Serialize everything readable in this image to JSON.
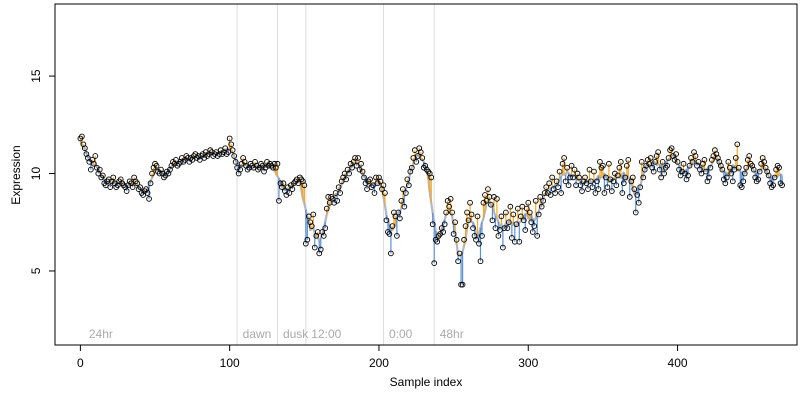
{
  "chart_data": {
    "type": "scatter",
    "xlabel": "Sample index",
    "ylabel": "Expression",
    "xlim": [
      -17,
      480
    ],
    "ylim": [
      1.2,
      18.7
    ],
    "xticks": [
      0,
      100,
      200,
      300,
      400
    ],
    "yticks": [
      5,
      10,
      15
    ],
    "grid": false,
    "legend": "none",
    "colors": {
      "above_fit": "#f5a623",
      "below_fit": "#5b8fd6",
      "fit_line": "#b0b8c4",
      "vlines": "#dddddd"
    },
    "annotations": [
      {
        "x": 3,
        "label": "24hr"
      },
      {
        "x": 106,
        "label": "dawn"
      },
      {
        "x": 133,
        "label": "dusk"
      },
      {
        "x": 152,
        "label": "12:00"
      },
      {
        "x": 204,
        "label": "0:00"
      },
      {
        "x": 238,
        "label": "48hr"
      }
    ],
    "vlines": [
      105,
      132,
      151,
      203,
      237
    ],
    "points_y": [
      11.8,
      11.9,
      11.5,
      11.3,
      11.0,
      10.8,
      10.6,
      10.2,
      10.7,
      10.5,
      10.9,
      10.3,
      10.0,
      10.2,
      9.8,
      9.9,
      9.5,
      9.4,
      9.6,
      9.7,
      9.3,
      9.6,
      9.8,
      9.5,
      9.3,
      9.4,
      9.6,
      9.7,
      9.5,
      9.4,
      9.3,
      9.1,
      9.4,
      9.6,
      9.5,
      9.3,
      9.8,
      9.6,
      9.5,
      9.2,
      9.3,
      9.0,
      8.9,
      9.1,
      9.2,
      9.0,
      8.7,
      9.5,
      10.0,
      10.3,
      10.5,
      10.4,
      10.1,
      10.0,
      10.2,
      10.0,
      9.8,
      9.9,
      10.1,
      10.0,
      10.2,
      10.4,
      10.6,
      10.5,
      10.7,
      10.4,
      10.5,
      10.6,
      10.8,
      10.6,
      10.7,
      10.9,
      10.8,
      10.6,
      10.8,
      10.7,
      10.9,
      11.0,
      10.8,
      10.9,
      10.7,
      10.9,
      11.0,
      10.8,
      11.1,
      10.9,
      11.0,
      11.2,
      11.1,
      10.9,
      11.0,
      11.1,
      10.9,
      11.0,
      11.2,
      11.0,
      11.1,
      11.3,
      11.0,
      11.1,
      11.8,
      11.5,
      11.2,
      10.9,
      10.6,
      10.3,
      10.0,
      10.2,
      10.5,
      10.8,
      10.6,
      10.4,
      10.2,
      10.3,
      10.5,
      10.4,
      10.3,
      10.6,
      10.4,
      10.2,
      10.3,
      10.5,
      10.4,
      10.1,
      10.3,
      10.6,
      10.4,
      10.5,
      10.4,
      10.3,
      10.5,
      10.3,
      10.5,
      8.6,
      9.5,
      9.3,
      9.5,
      9.1,
      8.9,
      9.3,
      9.0,
      9.4,
      9.2,
      9.5,
      9.6,
      9.7,
      9.5,
      9.8,
      9.7,
      9.6,
      9.4,
      6.4,
      6.6,
      7.8,
      7.5,
      7.3,
      7.9,
      6.2,
      6.8,
      7.0,
      5.9,
      6.1,
      7.0,
      6.8,
      7.2,
      8.2,
      8.8,
      8.5,
      8.8,
      8.7,
      8.5,
      9.0,
      8.6,
      9.3,
      9.0,
      9.6,
      9.8,
      10.0,
      9.7,
      10.2,
      10.0,
      10.5,
      10.3,
      10.6,
      10.8,
      10.4,
      10.8,
      10.2,
      10.5,
      10.1,
      9.8,
      9.5,
      9.2,
      9.6,
      9.7,
      9.3,
      9.4,
      9.0,
      9.8,
      9.5,
      9.8,
      9.6,
      9.2,
      9.4,
      9.0,
      7.6,
      7.0,
      6.9,
      5.9,
      7.3,
      8.0,
      7.8,
      6.8,
      8.0,
      7.7,
      8.6,
      9.2,
      8.3,
      9.0,
      9.7,
      9.4,
      10.1,
      10.3,
      10.8,
      11.2,
      10.6,
      10.9,
      11.3,
      11.1,
      10.8,
      10.3,
      10.4,
      10.2,
      10.1,
      10.0,
      9.8,
      7.4,
      5.4,
      6.6,
      6.5,
      6.8,
      6.9,
      7.2,
      7.0,
      7.4,
      8.0,
      8.6,
      8.3,
      8.7,
      8.0,
      6.9,
      7.5,
      6.6,
      5.5,
      5.9,
      4.3,
      4.3,
      6.6,
      7.3,
      8.0,
      7.6,
      8.5,
      7.9,
      7.2,
      6.8,
      6.6,
      7.8,
      6.4,
      5.5,
      6.8,
      8.5,
      8.9,
      8.6,
      9.2,
      8.8,
      8.4,
      7.6,
      8.8,
      7.2,
      8.7,
      6.8,
      7.1,
      7.8,
      6.2,
      7.2,
      8.0,
      7.2,
      7.5,
      8.3,
      6.7,
      7.9,
      6.5,
      7.4,
      8.2,
      6.5,
      7.8,
      8.3,
      7.6,
      7.1,
      8.2,
      8.5,
      8.0,
      7.5,
      7.0,
      7.3,
      8.6,
      6.8,
      7.9,
      8.8,
      8.3,
      8.6,
      9.0,
      9.3,
      9.0,
      9.5,
      8.9,
      9.8,
      9.2,
      9.0,
      9.6,
      9.3,
      10.1,
      9.0,
      10.5,
      10.8,
      9.6,
      10.3,
      9.4,
      9.8,
      10.4,
      9.8,
      10.2,
      9.4,
      10.0,
      9.8,
      9.4,
      9.1,
      9.6,
      9.8,
      9.5,
      9.2,
      10.2,
      9.6,
      9.3,
      10.1,
      9.0,
      9.6,
      9.2,
      10.6,
      10.3,
      10.4,
      9.0,
      9.8,
      9.3,
      10.5,
      9.7,
      9.1,
      9.6,
      10.0,
      9.4,
      9.9,
      10.3,
      10.6,
      9.0,
      9.5,
      9.8,
      10.4,
      10.7,
      8.8,
      9.6,
      9.8,
      9.2,
      8.0,
      8.9,
      8.5,
      9.3,
      10.6,
      9.8,
      10.2,
      10.4,
      10.7,
      10.5,
      10.8,
      10.3,
      10.1,
      10.6,
      10.9,
      11.1,
      10.2,
      9.8,
      10.6,
      10.0,
      10.3,
      10.4,
      10.8,
      11.2,
      11.3,
      10.9,
      10.7,
      11.0,
      10.6,
      10.2,
      9.9,
      10.1,
      10.5,
      10.0,
      9.7,
      9.9,
      10.4,
      10.8,
      10.6,
      11.1,
      10.9,
      10.4,
      10.6,
      10.2,
      10.0,
      10.5,
      10.7,
      10.1,
      9.6,
      9.8,
      10.3,
      10.7,
      10.9,
      11.2,
      11.0,
      10.8,
      10.6,
      10.4,
      10.2,
      9.7,
      9.5,
      9.8,
      10.6,
      10.3,
      10.0,
      9.6,
      10.2,
      10.8,
      11.5,
      10.3,
      9.4,
      9.3,
      9.6,
      10.0,
      10.3,
      10.7,
      10.9,
      10.5,
      10.4,
      10.2,
      9.8,
      9.6,
      9.7,
      10.1,
      10.5,
      10.8,
      10.6,
      10.3,
      10.1,
      9.9,
      9.5,
      9.3,
      9.4,
      9.8,
      10.2,
      10.4,
      10.3,
      9.5,
      9.4
    ]
  }
}
